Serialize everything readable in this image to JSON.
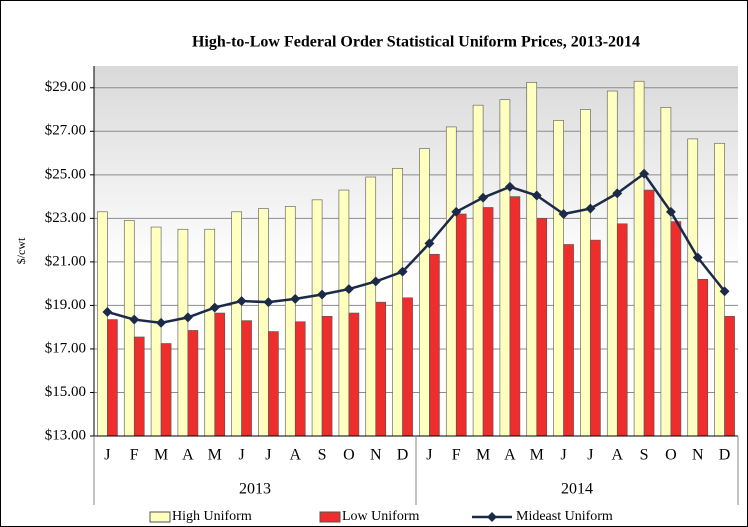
{
  "chart_data": {
    "type": "bar_line",
    "title": "High-to-Low Federal Order Statistical Uniform Prices, 2013-2014",
    "y_label": "$/cwt",
    "categories": [
      "J",
      "F",
      "M",
      "A",
      "M",
      "J",
      "J",
      "A",
      "S",
      "O",
      "N",
      "D",
      "J",
      "F",
      "M",
      "A",
      "M",
      "J",
      "J",
      "A",
      "S",
      "O",
      "N",
      "D"
    ],
    "groups": [
      "2013",
      "2014"
    ],
    "series": [
      {
        "name": "High Uniform",
        "kind": "bar",
        "color": "#ffffc0",
        "values": [
          23.3,
          22.9,
          22.6,
          22.5,
          22.5,
          23.3,
          23.45,
          23.55,
          23.85,
          24.3,
          24.9,
          25.3,
          26.2,
          27.2,
          28.2,
          28.45,
          29.25,
          27.5,
          28.0,
          28.85,
          29.3,
          28.1,
          26.65,
          26.45
        ]
      },
      {
        "name": "Low Uniform",
        "kind": "bar",
        "color": "#ee2d2d",
        "values": [
          18.35,
          17.55,
          17.25,
          17.85,
          18.65,
          18.3,
          17.8,
          18.25,
          18.5,
          18.65,
          19.15,
          19.35,
          21.35,
          23.2,
          23.5,
          24.0,
          23.0,
          21.8,
          22.0,
          22.75,
          24.3,
          22.85,
          20.2,
          18.5
        ]
      },
      {
        "name": "Mideast Uniform",
        "kind": "line",
        "color": "#1a2a48",
        "values": [
          18.7,
          18.35,
          18.2,
          18.45,
          18.9,
          19.2,
          19.15,
          19.3,
          19.5,
          19.75,
          20.1,
          20.55,
          21.85,
          23.3,
          23.95,
          24.45,
          24.05,
          23.2,
          23.45,
          24.15,
          25.05,
          23.3,
          21.2,
          19.65
        ]
      }
    ],
    "ylim": [
      13,
      30
    ],
    "yticks": [
      {
        "value": 13,
        "label": "$13.00"
      },
      {
        "value": 15,
        "label": "$15.00"
      },
      {
        "value": 17,
        "label": "$17.00"
      },
      {
        "value": 19,
        "label": "$19.00"
      },
      {
        "value": 21,
        "label": "$21.00"
      },
      {
        "value": 23,
        "label": "$23.00"
      },
      {
        "value": 25,
        "label": "$25.00"
      },
      {
        "value": 27,
        "label": "$27.00"
      },
      {
        "value": 29,
        "label": "$29.00"
      }
    ],
    "grid": true
  }
}
